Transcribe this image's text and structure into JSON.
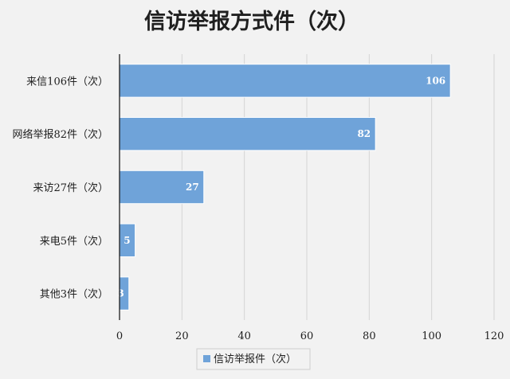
{
  "chart_data": {
    "type": "bar",
    "orientation": "horizontal",
    "title": "信访举报方式件（次）",
    "categories": [
      "来信106件（次）",
      "网络举报82件（次）",
      "来访27件（次）",
      "来电5件（次）",
      "其他3件（次）"
    ],
    "series": [
      {
        "name": "信访举报件（次）",
        "values": [
          106,
          82,
          27,
          5,
          3
        ]
      }
    ],
    "xlim": [
      0,
      120
    ],
    "x_ticks": [
      "0",
      "20",
      "40",
      "60",
      "80",
      "100",
      "120"
    ],
    "data_labels": [
      "106",
      "82",
      "27",
      "5",
      "3"
    ],
    "grid": true,
    "legend_position": "bottom",
    "colors": {
      "bar": "#6fa3d9",
      "bar_stroke": "#ffffff",
      "grid": "#d4d4d4",
      "axis": "#1f1f1f",
      "background": "#f2f2f2"
    }
  }
}
